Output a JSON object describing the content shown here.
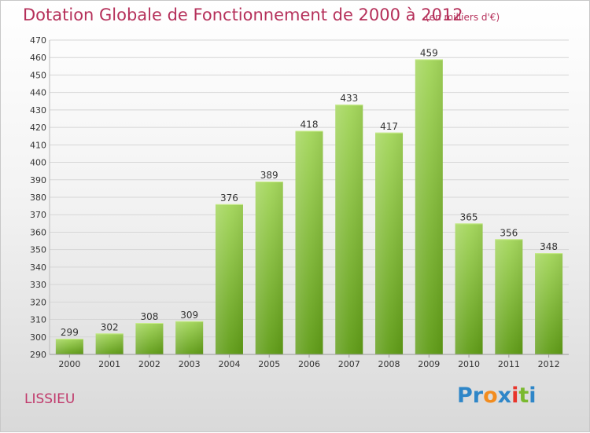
{
  "chart_data": {
    "type": "bar",
    "title": "Dotation Globale de Fonctionnement de 2000 à 2012",
    "subtitle": "(en milliers d'€)",
    "xlabel": "",
    "ylabel": "",
    "categories": [
      "2000",
      "2001",
      "2002",
      "2003",
      "2004",
      "2005",
      "2006",
      "2007",
      "2008",
      "2009",
      "2010",
      "2011",
      "2012"
    ],
    "values": [
      299,
      302,
      308,
      309,
      376,
      389,
      418,
      433,
      417,
      459,
      365,
      356,
      348
    ],
    "ylim": [
      290,
      470
    ],
    "yticks": [
      290,
      300,
      310,
      320,
      330,
      340,
      350,
      360,
      370,
      380,
      390,
      400,
      410,
      420,
      430,
      440,
      450,
      460,
      470
    ],
    "grid": true,
    "bar_color": "#7cb832"
  },
  "commune": "LISSIEU",
  "logo": {
    "parts": [
      "Pr",
      "o",
      "x",
      "i",
      "t",
      "i"
    ]
  }
}
